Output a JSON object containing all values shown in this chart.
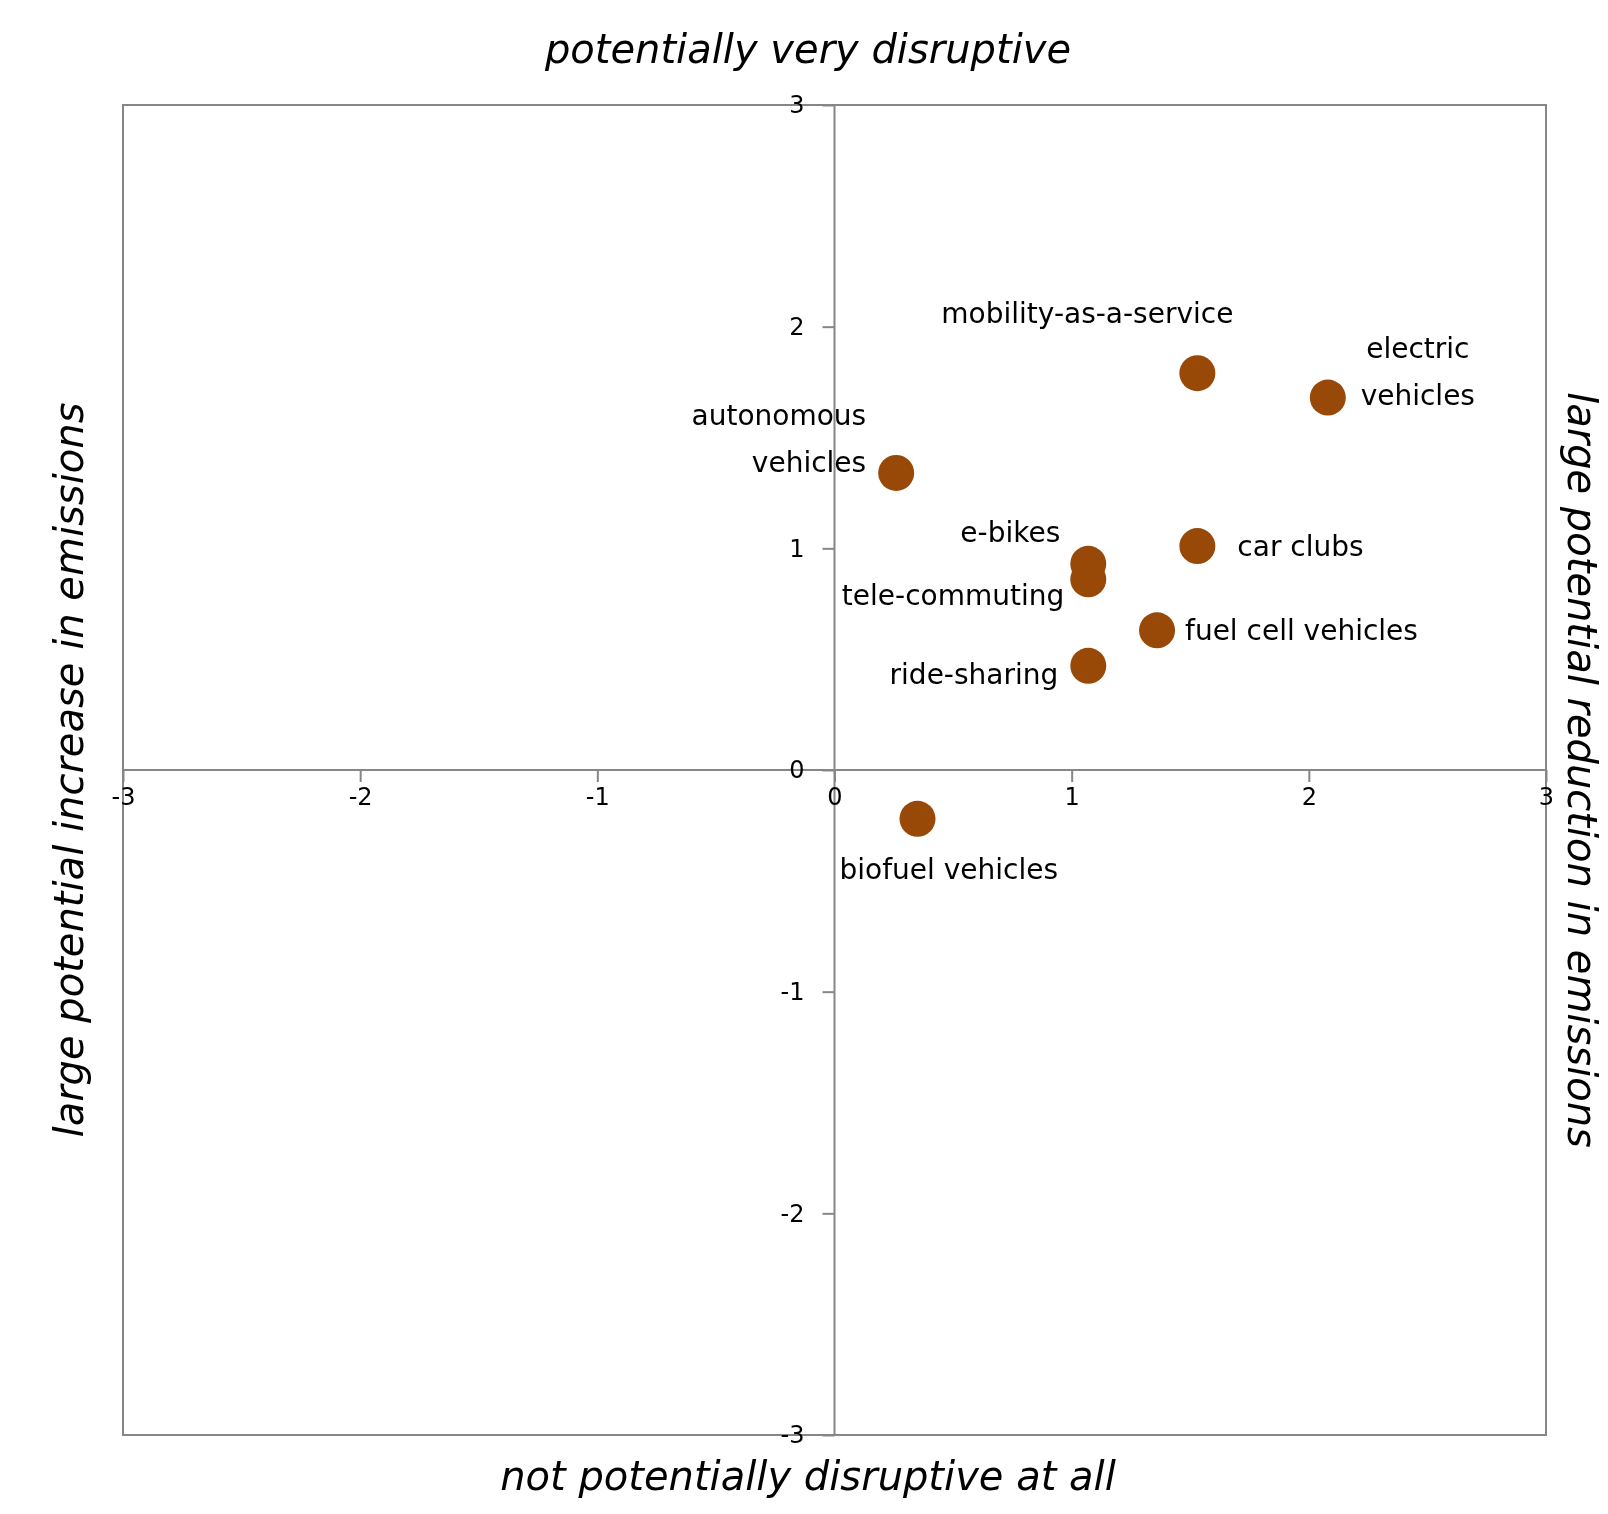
{
  "chart_data": {
    "type": "scatter",
    "title": "potentially very disruptive",
    "xlabel": "not potentially disruptive at all",
    "ylabel": "large potential increase in emissions",
    "y2label": "large potential reduction in emissions",
    "x": [
      1.53,
      2.08,
      0.26,
      1.53,
      1.07,
      1.07,
      1.36,
      1.07,
      0.35
    ],
    "values": [
      1.79,
      1.68,
      1.34,
      1.01,
      0.93,
      0.86,
      0.63,
      0.47,
      -0.22
    ],
    "color": "#984807",
    "marker": "circle",
    "grid": false,
    "legend": false,
    "xlim": [
      -3,
      3
    ],
    "ylim": [
      -3,
      3
    ],
    "xticks": [
      -3,
      -2,
      -1,
      0,
      1,
      2,
      3
    ],
    "yticks": [
      -3,
      -2,
      -1,
      0,
      1,
      2,
      3
    ],
    "annotations": [
      {
        "text": "mobility-as-a-service",
        "x": 1.53,
        "y": 1.79
      },
      {
        "text": "electric vehicles",
        "x": 2.08,
        "y": 1.68
      },
      {
        "text": "autonomous vehicles",
        "x": 0.26,
        "y": 1.34
      },
      {
        "text": "car clubs",
        "x": 1.53,
        "y": 1.01
      },
      {
        "text": "e-bikes",
        "x": 1.07,
        "y": 0.93
      },
      {
        "text": "tele-commuting",
        "x": 1.07,
        "y": 0.86
      },
      {
        "text": "fuel cell vehicles",
        "x": 1.36,
        "y": 0.63
      },
      {
        "text": "ride-sharing",
        "x": 1.07,
        "y": 0.47
      },
      {
        "text": "biofuel vehicles",
        "x": 0.35,
        "y": -0.22
      }
    ]
  }
}
